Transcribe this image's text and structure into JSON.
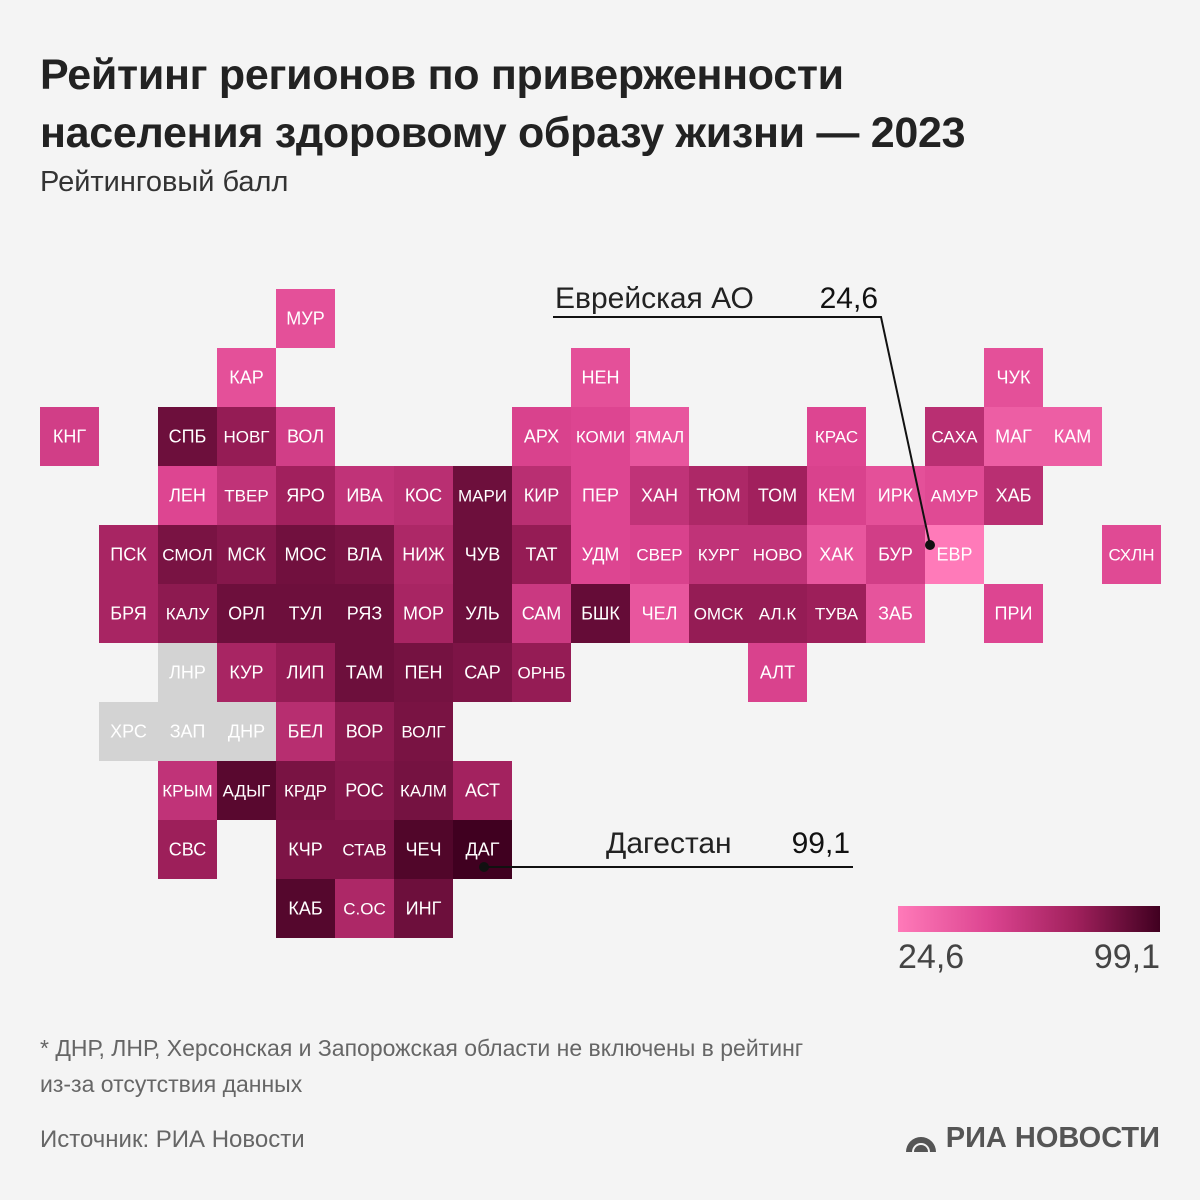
{
  "title_line1": "Рейтинг регионов по приверженности",
  "title_line2": "населения здоровому образу жизни — 2023",
  "subtitle": "Рейтинговый балл",
  "chart_data": {
    "type": "heatmap",
    "title": "Рейтинг регионов по приверженности населения здоровому образу жизни — 2023",
    "subtitle": "Рейтинговый балл",
    "value_range": [
      24.6,
      99.1
    ],
    "colors": {
      "min": "#ff7ab9",
      "max": "#400020",
      "no_data": "#d3d3d3"
    },
    "regions": [
      {
        "label": "МУР",
        "col": 4,
        "row": 0,
        "value": 45
      },
      {
        "label": "КАР",
        "col": 3,
        "row": 1,
        "value": 45
      },
      {
        "label": "НЕН",
        "col": 9,
        "row": 1,
        "value": 45
      },
      {
        "label": "ЧУК",
        "col": 16,
        "row": 1,
        "value": 45
      },
      {
        "label": "КНГ",
        "col": 0,
        "row": 2,
        "value": 55
      },
      {
        "label": "СПБ",
        "col": 2,
        "row": 2,
        "value": 88
      },
      {
        "label": "НОВГ",
        "col": 3,
        "row": 2,
        "value": 78
      },
      {
        "label": "ВОЛ",
        "col": 4,
        "row": 2,
        "value": 55
      },
      {
        "label": "АРХ",
        "col": 8,
        "row": 2,
        "value": 52
      },
      {
        "label": "КОМИ",
        "col": 9,
        "row": 2,
        "value": 50
      },
      {
        "label": "ЯМАЛ",
        "col": 10,
        "row": 2,
        "value": 42
      },
      {
        "label": "КРАС",
        "col": 13,
        "row": 2,
        "value": 50
      },
      {
        "label": "САХА",
        "col": 15,
        "row": 2,
        "value": 65
      },
      {
        "label": "МАГ",
        "col": 16,
        "row": 2,
        "value": 38
      },
      {
        "label": "КАМ",
        "col": 17,
        "row": 2,
        "value": 38
      },
      {
        "label": "ЛЕН",
        "col": 2,
        "row": 3,
        "value": 50
      },
      {
        "label": "ТВЕР",
        "col": 3,
        "row": 3,
        "value": 62
      },
      {
        "label": "ЯРО",
        "col": 4,
        "row": 3,
        "value": 75
      },
      {
        "label": "ИВА",
        "col": 5,
        "row": 3,
        "value": 62
      },
      {
        "label": "КОС",
        "col": 6,
        "row": 3,
        "value": 65
      },
      {
        "label": "МАРИ",
        "col": 7,
        "row": 3,
        "value": 88
      },
      {
        "label": "КИР",
        "col": 8,
        "row": 3,
        "value": 65
      },
      {
        "label": "ПЕР",
        "col": 9,
        "row": 3,
        "value": 50
      },
      {
        "label": "ХАН",
        "col": 10,
        "row": 3,
        "value": 62
      },
      {
        "label": "ТЮМ",
        "col": 11,
        "row": 3,
        "value": 70
      },
      {
        "label": "ТОМ",
        "col": 12,
        "row": 3,
        "value": 75
      },
      {
        "label": "КЕМ",
        "col": 13,
        "row": 3,
        "value": 52
      },
      {
        "label": "ИРК",
        "col": 14,
        "row": 3,
        "value": 45
      },
      {
        "label": "АМУР",
        "col": 15,
        "row": 3,
        "value": 48
      },
      {
        "label": "ХАБ",
        "col": 16,
        "row": 3,
        "value": 65
      },
      {
        "label": "ПСК",
        "col": 1,
        "row": 4,
        "value": 72
      },
      {
        "label": "СМОЛ",
        "col": 2,
        "row": 4,
        "value": 85
      },
      {
        "label": "МСК",
        "col": 3,
        "row": 4,
        "value": 82
      },
      {
        "label": "МОС",
        "col": 4,
        "row": 4,
        "value": 87
      },
      {
        "label": "ВЛА",
        "col": 5,
        "row": 4,
        "value": 85
      },
      {
        "label": "НИЖ",
        "col": 6,
        "row": 4,
        "value": 70
      },
      {
        "label": "ЧУВ",
        "col": 7,
        "row": 4,
        "value": 88
      },
      {
        "label": "ТАТ",
        "col": 8,
        "row": 4,
        "value": 78
      },
      {
        "label": "УДМ",
        "col": 9,
        "row": 4,
        "value": 50
      },
      {
        "label": "СВЕР",
        "col": 10,
        "row": 4,
        "value": 52
      },
      {
        "label": "КУРГ",
        "col": 11,
        "row": 4,
        "value": 62
      },
      {
        "label": "НОВО",
        "col": 12,
        "row": 4,
        "value": 62
      },
      {
        "label": "ХАК",
        "col": 13,
        "row": 4,
        "value": 42
      },
      {
        "label": "БУР",
        "col": 14,
        "row": 4,
        "value": 55
      },
      {
        "label": "ЕВР",
        "col": 15,
        "row": 4,
        "value": 24.6
      },
      {
        "label": "СХЛН",
        "col": 18,
        "row": 4,
        "value": 48
      },
      {
        "label": "БРЯ",
        "col": 1,
        "row": 5,
        "value": 72
      },
      {
        "label": "КАЛУ",
        "col": 2,
        "row": 5,
        "value": 80
      },
      {
        "label": "ОРЛ",
        "col": 3,
        "row": 5,
        "value": 88
      },
      {
        "label": "ТУЛ",
        "col": 4,
        "row": 5,
        "value": 88
      },
      {
        "label": "РЯЗ",
        "col": 5,
        "row": 5,
        "value": 88
      },
      {
        "label": "МОР",
        "col": 6,
        "row": 5,
        "value": 72
      },
      {
        "label": "УЛЬ",
        "col": 7,
        "row": 5,
        "value": 88
      },
      {
        "label": "САМ",
        "col": 8,
        "row": 5,
        "value": 58
      },
      {
        "label": "БШК",
        "col": 9,
        "row": 5,
        "value": 90
      },
      {
        "label": "ЧЕЛ",
        "col": 10,
        "row": 5,
        "value": 42
      },
      {
        "label": "ОМСК",
        "col": 11,
        "row": 5,
        "value": 78
      },
      {
        "label": "АЛ.К",
        "col": 12,
        "row": 5,
        "value": 78
      },
      {
        "label": "ТУВА",
        "col": 13,
        "row": 5,
        "value": 76
      },
      {
        "label": "ЗАБ",
        "col": 14,
        "row": 5,
        "value": 43
      },
      {
        "label": "ПРИ",
        "col": 16,
        "row": 5,
        "value": 50
      },
      {
        "label": "ЛНР",
        "col": 2,
        "row": 6,
        "value": null
      },
      {
        "label": "КУР",
        "col": 3,
        "row": 6,
        "value": 72
      },
      {
        "label": "ЛИП",
        "col": 4,
        "row": 6,
        "value": 78
      },
      {
        "label": "ТАМ",
        "col": 5,
        "row": 6,
        "value": 88
      },
      {
        "label": "ПЕН",
        "col": 6,
        "row": 6,
        "value": 86
      },
      {
        "label": "САР",
        "col": 7,
        "row": 6,
        "value": 84
      },
      {
        "label": "ОРНБ",
        "col": 8,
        "row": 6,
        "value": 78
      },
      {
        "label": "АЛТ",
        "col": 12,
        "row": 6,
        "value": 52
      },
      {
        "label": "ХРС",
        "col": 1,
        "row": 7,
        "value": null
      },
      {
        "label": "ЗАП",
        "col": 2,
        "row": 7,
        "value": null
      },
      {
        "label": "ДНР",
        "col": 3,
        "row": 7,
        "value": null
      },
      {
        "label": "БЕЛ",
        "col": 4,
        "row": 7,
        "value": 66
      },
      {
        "label": "ВОР",
        "col": 5,
        "row": 7,
        "value": 80
      },
      {
        "label": "ВОЛГ",
        "col": 6,
        "row": 7,
        "value": 85
      },
      {
        "label": "КРЫМ",
        "col": 2,
        "row": 8,
        "value": 62
      },
      {
        "label": "АДЫГ",
        "col": 3,
        "row": 8,
        "value": 93
      },
      {
        "label": "КРДР",
        "col": 4,
        "row": 8,
        "value": 85
      },
      {
        "label": "РОС",
        "col": 5,
        "row": 8,
        "value": 82
      },
      {
        "label": "КАЛМ",
        "col": 6,
        "row": 8,
        "value": 86
      },
      {
        "label": "АСТ",
        "col": 7,
        "row": 8,
        "value": 74
      },
      {
        "label": "СВС",
        "col": 2,
        "row": 9,
        "value": 76
      },
      {
        "label": "КЧР",
        "col": 4,
        "row": 9,
        "value": 84
      },
      {
        "label": "СТАВ",
        "col": 5,
        "row": 9,
        "value": 84
      },
      {
        "label": "ЧЕЧ",
        "col": 6,
        "row": 9,
        "value": 95
      },
      {
        "label": "ДАГ",
        "col": 7,
        "row": 9,
        "value": 99.1
      },
      {
        "label": "КАБ",
        "col": 4,
        "row": 10,
        "value": 94
      },
      {
        "label": "С.ОС",
        "col": 5,
        "row": 10,
        "value": 70
      },
      {
        "label": "ИНГ",
        "col": 6,
        "row": 10,
        "value": 88
      }
    ],
    "annotations": [
      {
        "name": "Еврейская АО",
        "value_label": "24,6",
        "region": "ЕВР"
      },
      {
        "name": "Дагестан",
        "value_label": "99,1",
        "region": "ДАГ"
      }
    ],
    "legend": {
      "min_label": "24,6",
      "max_label": "99,1"
    }
  },
  "note_line1": "* ДНР, ЛНР, Херсонская и Запорожская области не включены в рейтинг",
  "note_line2": "из-за отсутствия данных",
  "source": "Источник: РИА Новости",
  "logo_text": "РИА НОВОСТИ"
}
